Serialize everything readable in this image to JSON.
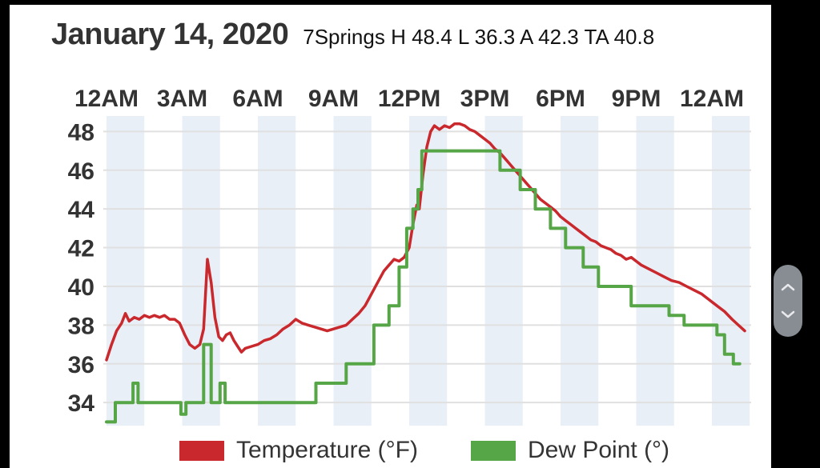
{
  "header": {
    "date_title": "January 14, 2020",
    "stats": "7Springs H 48.4 L 36.3 A 42.3 TA 40.8"
  },
  "summary": {
    "station": "7Springs",
    "high": 48.4,
    "low": 36.3,
    "average": 42.3,
    "ta": 40.8
  },
  "legend": {
    "temperature_label": "Temperature (°F)",
    "dew_point_label": "Dew Point (°)"
  },
  "colors": {
    "temperature": "#c9282d",
    "dew_point": "#56a546",
    "band": "#e9eff7",
    "grid": "#e0e0e0",
    "axis_text": "#333333",
    "frame": "#000000",
    "scroller": "#878d93",
    "chevron": "#e8eaed"
  },
  "scroll_widget": {
    "up_icon": "chevron-up",
    "down_icon": "chevron-down"
  },
  "chart_data": {
    "type": "line",
    "title": "",
    "xlabel": "",
    "ylabel": "",
    "x_tick_labels": [
      "12AM",
      "3AM",
      "6AM",
      "9AM",
      "12PM",
      "3PM",
      "6PM",
      "9PM",
      "12AM"
    ],
    "x_tick_hours": [
      0,
      3,
      6,
      9,
      12,
      15,
      18,
      21,
      24
    ],
    "y_ticks": [
      34,
      36,
      38,
      40,
      42,
      44,
      46,
      48
    ],
    "x_range_hours": [
      0,
      25.5
    ],
    "y_range": [
      32.8,
      48.8
    ],
    "grid": "horizontal",
    "background_bands_interval_hours": 1.5,
    "legend_position": "bottom",
    "series": [
      {
        "name": "Temperature (°F)",
        "color": "#c9282d",
        "step": false,
        "points": [
          [
            0,
            36.2
          ],
          [
            0.2,
            37.0
          ],
          [
            0.4,
            37.7
          ],
          [
            0.6,
            38.1
          ],
          [
            0.75,
            38.6
          ],
          [
            0.9,
            38.2
          ],
          [
            1.1,
            38.4
          ],
          [
            1.3,
            38.3
          ],
          [
            1.5,
            38.5
          ],
          [
            1.7,
            38.4
          ],
          [
            1.9,
            38.5
          ],
          [
            2.1,
            38.4
          ],
          [
            2.3,
            38.5
          ],
          [
            2.5,
            38.3
          ],
          [
            2.7,
            38.3
          ],
          [
            2.9,
            38.1
          ],
          [
            3.1,
            37.5
          ],
          [
            3.3,
            37.0
          ],
          [
            3.5,
            36.8
          ],
          [
            3.7,
            37.0
          ],
          [
            3.85,
            37.8
          ],
          [
            4.0,
            41.4
          ],
          [
            4.15,
            40.2
          ],
          [
            4.3,
            38.4
          ],
          [
            4.45,
            37.4
          ],
          [
            4.6,
            37.2
          ],
          [
            4.75,
            37.5
          ],
          [
            4.9,
            37.6
          ],
          [
            5.05,
            37.2
          ],
          [
            5.2,
            36.9
          ],
          [
            5.35,
            36.6
          ],
          [
            5.5,
            36.8
          ],
          [
            5.75,
            36.9
          ],
          [
            6,
            37.0
          ],
          [
            6.25,
            37.2
          ],
          [
            6.5,
            37.3
          ],
          [
            6.75,
            37.5
          ],
          [
            7,
            37.8
          ],
          [
            7.25,
            38.0
          ],
          [
            7.5,
            38.3
          ],
          [
            7.75,
            38.1
          ],
          [
            8,
            38.0
          ],
          [
            8.25,
            37.9
          ],
          [
            8.5,
            37.8
          ],
          [
            8.75,
            37.7
          ],
          [
            9,
            37.8
          ],
          [
            9.25,
            37.9
          ],
          [
            9.5,
            38.0
          ],
          [
            9.75,
            38.3
          ],
          [
            10,
            38.6
          ],
          [
            10.25,
            39.0
          ],
          [
            10.5,
            39.6
          ],
          [
            10.75,
            40.2
          ],
          [
            11,
            40.8
          ],
          [
            11.2,
            41.1
          ],
          [
            11.4,
            41.4
          ],
          [
            11.6,
            41.3
          ],
          [
            11.8,
            41.5
          ],
          [
            12,
            42.0
          ],
          [
            12.15,
            43.2
          ],
          [
            12.3,
            44.2
          ],
          [
            12.4,
            44.0
          ],
          [
            12.55,
            45.8
          ],
          [
            12.7,
            47.2
          ],
          [
            12.85,
            48.0
          ],
          [
            13,
            48.3
          ],
          [
            13.2,
            48.1
          ],
          [
            13.4,
            48.3
          ],
          [
            13.6,
            48.2
          ],
          [
            13.8,
            48.4
          ],
          [
            14,
            48.4
          ],
          [
            14.2,
            48.3
          ],
          [
            14.4,
            48.1
          ],
          [
            14.6,
            48.0
          ],
          [
            14.8,
            47.8
          ],
          [
            15,
            47.6
          ],
          [
            15.2,
            47.4
          ],
          [
            15.4,
            47.1
          ],
          [
            15.6,
            46.9
          ],
          [
            15.8,
            46.6
          ],
          [
            16,
            46.3
          ],
          [
            16.2,
            46.0
          ],
          [
            16.4,
            45.7
          ],
          [
            16.6,
            45.4
          ],
          [
            16.8,
            45.1
          ],
          [
            17,
            44.8
          ],
          [
            17.2,
            44.5
          ],
          [
            17.4,
            44.3
          ],
          [
            17.6,
            44.1
          ],
          [
            17.8,
            43.9
          ],
          [
            18,
            43.6
          ],
          [
            18.2,
            43.4
          ],
          [
            18.4,
            43.2
          ],
          [
            18.6,
            43.0
          ],
          [
            18.8,
            42.8
          ],
          [
            19,
            42.6
          ],
          [
            19.2,
            42.4
          ],
          [
            19.4,
            42.3
          ],
          [
            19.6,
            42.1
          ],
          [
            19.8,
            42.0
          ],
          [
            20,
            41.9
          ],
          [
            20.2,
            41.7
          ],
          [
            20.4,
            41.6
          ],
          [
            20.6,
            41.4
          ],
          [
            20.8,
            41.5
          ],
          [
            21,
            41.3
          ],
          [
            21.2,
            41.1
          ],
          [
            21.5,
            40.9
          ],
          [
            21.8,
            40.7
          ],
          [
            22.1,
            40.5
          ],
          [
            22.4,
            40.3
          ],
          [
            22.7,
            40.2
          ],
          [
            23,
            40.0
          ],
          [
            23.3,
            39.8
          ],
          [
            23.6,
            39.6
          ],
          [
            23.9,
            39.3
          ],
          [
            24.2,
            39.0
          ],
          [
            24.5,
            38.7
          ],
          [
            24.8,
            38.3
          ],
          [
            25.05,
            38.0
          ],
          [
            25.3,
            37.7
          ]
        ]
      },
      {
        "name": "Dew Point (°)",
        "color": "#56a546",
        "step": true,
        "points": [
          [
            0,
            33.0
          ],
          [
            0.35,
            33.0
          ],
          [
            0.35,
            34.0
          ],
          [
            1.05,
            34.0
          ],
          [
            1.05,
            35.0
          ],
          [
            1.25,
            35.0
          ],
          [
            1.25,
            34.0
          ],
          [
            2.95,
            34.0
          ],
          [
            2.95,
            33.4
          ],
          [
            3.15,
            33.4
          ],
          [
            3.15,
            34.0
          ],
          [
            3.85,
            34.0
          ],
          [
            3.85,
            37.0
          ],
          [
            4.15,
            37.0
          ],
          [
            4.15,
            34.0
          ],
          [
            4.5,
            34.0
          ],
          [
            4.5,
            35.0
          ],
          [
            4.7,
            35.0
          ],
          [
            4.7,
            34.0
          ],
          [
            8.3,
            34.0
          ],
          [
            8.3,
            35.0
          ],
          [
            9.5,
            35.0
          ],
          [
            9.5,
            36.0
          ],
          [
            10.6,
            36.0
          ],
          [
            10.6,
            38.0
          ],
          [
            11.2,
            38.0
          ],
          [
            11.2,
            39.0
          ],
          [
            11.6,
            39.0
          ],
          [
            11.6,
            41.0
          ],
          [
            11.9,
            41.0
          ],
          [
            11.9,
            43.0
          ],
          [
            12.15,
            43.0
          ],
          [
            12.15,
            44.0
          ],
          [
            12.35,
            44.0
          ],
          [
            12.35,
            45.0
          ],
          [
            12.5,
            45.0
          ],
          [
            12.5,
            47.0
          ],
          [
            15.6,
            47.0
          ],
          [
            15.6,
            46.0
          ],
          [
            16.4,
            46.0
          ],
          [
            16.4,
            45.0
          ],
          [
            17.0,
            45.0
          ],
          [
            17.0,
            44.0
          ],
          [
            17.6,
            44.0
          ],
          [
            17.6,
            43.0
          ],
          [
            18.2,
            43.0
          ],
          [
            18.2,
            42.0
          ],
          [
            18.9,
            42.0
          ],
          [
            18.9,
            41.0
          ],
          [
            19.5,
            41.0
          ],
          [
            19.5,
            40.0
          ],
          [
            20.8,
            40.0
          ],
          [
            20.8,
            39.0
          ],
          [
            22.3,
            39.0
          ],
          [
            22.3,
            38.5
          ],
          [
            22.9,
            38.5
          ],
          [
            22.9,
            38.0
          ],
          [
            24.2,
            38.0
          ],
          [
            24.2,
            37.5
          ],
          [
            24.5,
            37.5
          ],
          [
            24.5,
            36.5
          ],
          [
            24.85,
            36.5
          ],
          [
            24.85,
            36.0
          ],
          [
            25.1,
            36.0
          ]
        ]
      }
    ]
  }
}
